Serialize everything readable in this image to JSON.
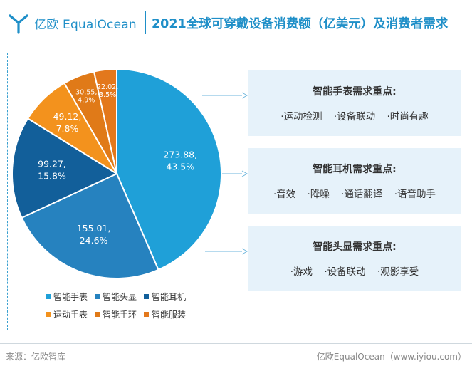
{
  "header": {
    "logo_text": "亿欧 EqualOcean",
    "title": "2021全球可穿戴设备消费额（亿美元）及消费者需求"
  },
  "chart_data": {
    "type": "pie",
    "title": "2021全球可穿戴设备消费额（亿美元）及消费者需求",
    "slices": [
      {
        "name": "智能手表",
        "value": 273.88,
        "percent": "43.5%",
        "color": "#1fa0d8"
      },
      {
        "name": "智能头显",
        "value": 155.01,
        "percent": "24.6%",
        "color": "#2682bf"
      },
      {
        "name": "智能耳机",
        "value": 99.27,
        "percent": "15.8%",
        "color": "#125f9a"
      },
      {
        "name": "运动手表",
        "value": 49.12,
        "percent": "7.8%",
        "color": "#f3921d"
      },
      {
        "name": "智能手环",
        "value": 30.55,
        "percent": "4.9%",
        "color": "#e07a18"
      },
      {
        "name": "智能服装",
        "value": 22.02,
        "percent": "3.5%",
        "color": "#e3781c"
      }
    ],
    "legend_position": "bottom-left"
  },
  "legend": [
    [
      "智能手表",
      "智能头显",
      "智能耳机"
    ],
    [
      "运动手表",
      "智能手环",
      "智能服装"
    ]
  ],
  "cards": [
    {
      "title": "智能手表需求重点:",
      "items": [
        "·运动检测",
        "·设备联动",
        "·时尚有趣"
      ]
    },
    {
      "title": "智能耳机需求重点:",
      "items": [
        "·音效",
        "·降噪",
        "·通话翻译",
        "·语音助手"
      ]
    },
    {
      "title": "智能头显需求重点:",
      "items": [
        "·游戏",
        "·设备联动",
        "·观影享受"
      ]
    }
  ],
  "footer": {
    "source": "来源：亿欧智库",
    "credit": "亿欧EqualOcean（www.iyiou.com）"
  }
}
